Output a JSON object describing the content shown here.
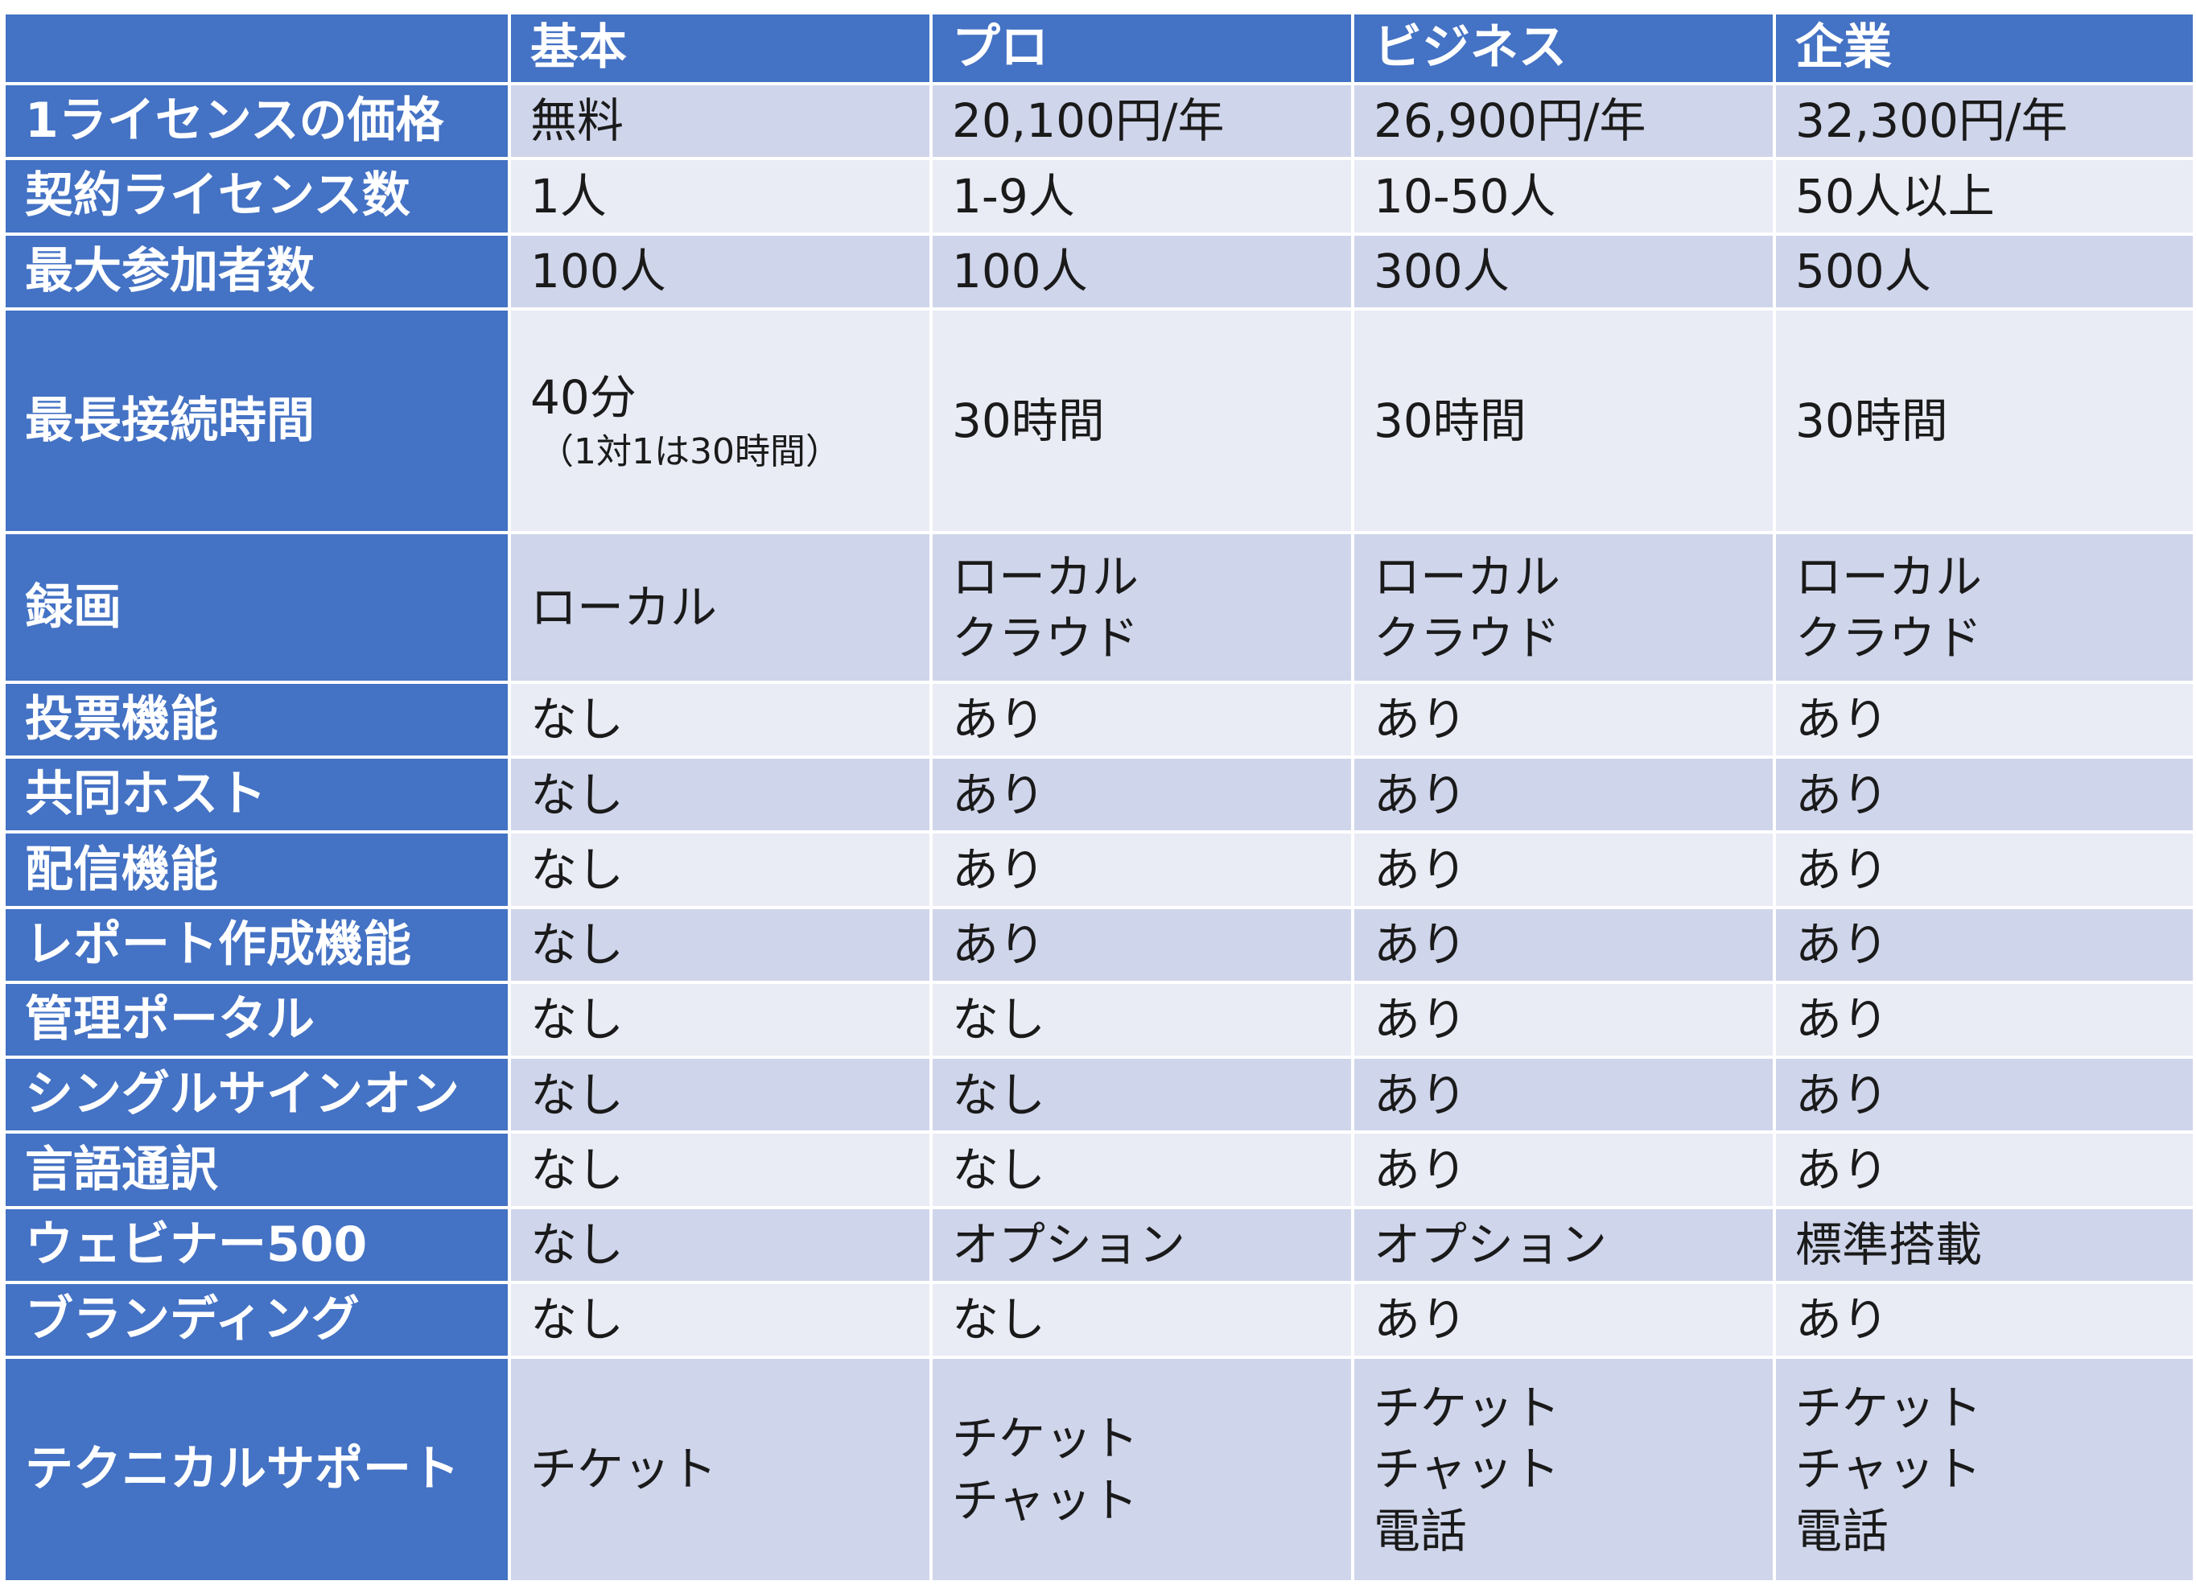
{
  "table": {
    "columns": [
      "基本",
      "プロ",
      "ビジネス",
      "企業"
    ],
    "rows": [
      {
        "label": "1ライセンスの価格",
        "cells": [
          [
            "無料"
          ],
          [
            "20,100円/年"
          ],
          [
            "26,900円/年"
          ],
          [
            "32,300円/年"
          ]
        ]
      },
      {
        "label": "契約ライセンス数",
        "cells": [
          [
            "1人"
          ],
          [
            "1-9人"
          ],
          [
            "10-50人"
          ],
          [
            "50人以上"
          ]
        ]
      },
      {
        "label": "最大参加者数",
        "cells": [
          [
            "100人"
          ],
          [
            "100人"
          ],
          [
            "300人"
          ],
          [
            "500人"
          ]
        ]
      },
      {
        "label": "最長接続時間",
        "cells": [
          [
            "40分",
            "（1対1は30時間）"
          ],
          [
            "30時間"
          ],
          [
            "30時間"
          ],
          [
            "30時間"
          ]
        ]
      },
      {
        "label": "録画",
        "cells": [
          [
            "ローカル"
          ],
          [
            "ローカル",
            "クラウド"
          ],
          [
            "ローカル",
            "クラウド"
          ],
          [
            "ローカル",
            "クラウド"
          ]
        ]
      },
      {
        "label": "投票機能",
        "cells": [
          [
            "なし"
          ],
          [
            "あり"
          ],
          [
            "あり"
          ],
          [
            "あり"
          ]
        ]
      },
      {
        "label": "共同ホスト",
        "cells": [
          [
            "なし"
          ],
          [
            "あり"
          ],
          [
            "あり"
          ],
          [
            "あり"
          ]
        ]
      },
      {
        "label": "配信機能",
        "cells": [
          [
            "なし"
          ],
          [
            "あり"
          ],
          [
            "あり"
          ],
          [
            "あり"
          ]
        ]
      },
      {
        "label": "レポート作成機能",
        "cells": [
          [
            "なし"
          ],
          [
            "あり"
          ],
          [
            "あり"
          ],
          [
            "あり"
          ]
        ]
      },
      {
        "label": "管理ポータル",
        "cells": [
          [
            "なし"
          ],
          [
            "なし"
          ],
          [
            "あり"
          ],
          [
            "あり"
          ]
        ]
      },
      {
        "label": "シングルサインオン",
        "cells": [
          [
            "なし"
          ],
          [
            "なし"
          ],
          [
            "あり"
          ],
          [
            "あり"
          ]
        ]
      },
      {
        "label": "言語通訳",
        "cells": [
          [
            "なし"
          ],
          [
            "なし"
          ],
          [
            "あり"
          ],
          [
            "あり"
          ]
        ]
      },
      {
        "label": "ウェビナー500",
        "cells": [
          [
            "なし"
          ],
          [
            "オプション"
          ],
          [
            "オプション"
          ],
          [
            "標準搭載"
          ]
        ]
      },
      {
        "label": "ブランディング",
        "cells": [
          [
            "なし"
          ],
          [
            "なし"
          ],
          [
            "あり"
          ],
          [
            "あり"
          ]
        ]
      },
      {
        "label": "テクニカルサポート",
        "cells": [
          [
            "チケット"
          ],
          [
            "チケット",
            "チャット"
          ],
          [
            "チケット",
            "チャット",
            "電話"
          ],
          [
            "チケット",
            "チャット",
            "電話"
          ]
        ]
      }
    ]
  },
  "colors": {
    "header_bg": "#4472c4",
    "row_dark": "#cfd5ea",
    "row_light": "#e9ebf5"
  }
}
